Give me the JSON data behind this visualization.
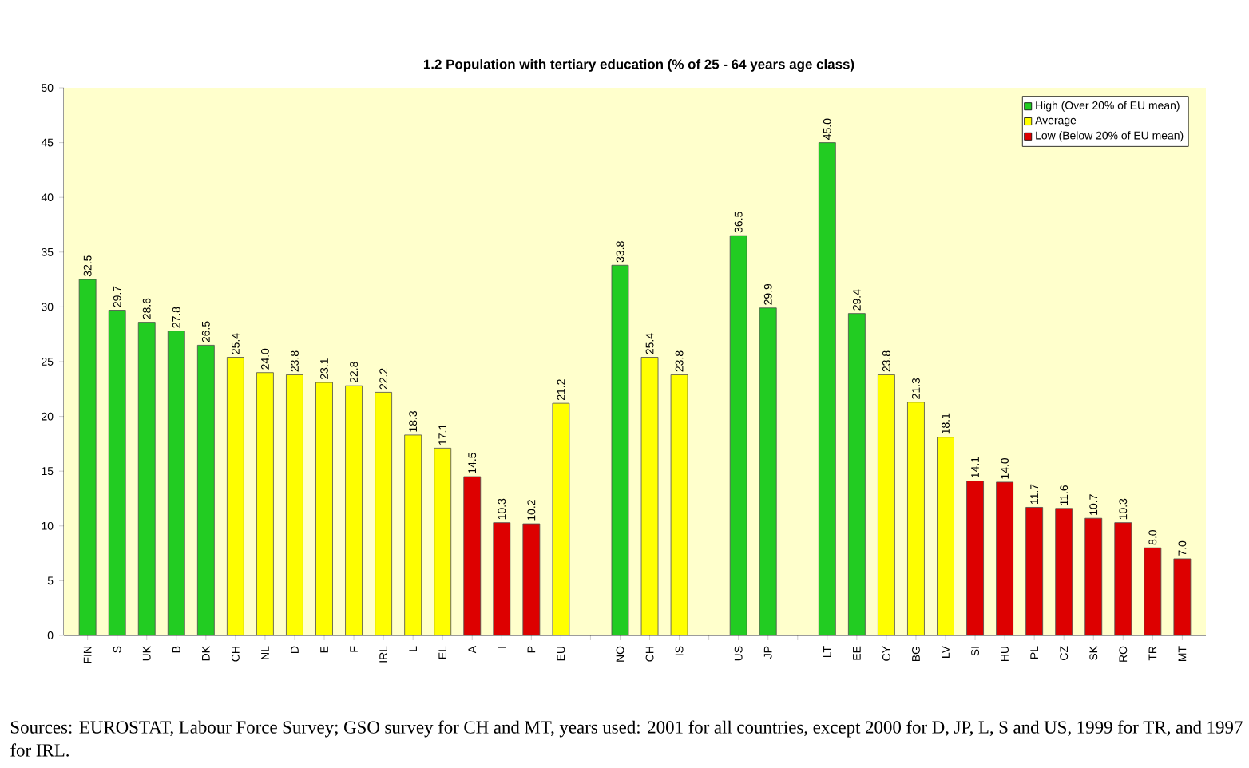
{
  "chart_data": {
    "type": "bar",
    "title": "1.2 Population with tertiary education (% of 25 - 64 years age class)",
    "categories": [
      "FIN",
      "S",
      "UK",
      "B",
      "DK",
      "CH",
      "NL",
      "D",
      "E",
      "F",
      "IRL",
      "L",
      "EL",
      "A",
      "I",
      "P",
      "EU",
      null,
      "NO",
      "CH",
      "IS",
      null,
      "US",
      "JP",
      null,
      "LT",
      "EE",
      "CY",
      "BG",
      "LV",
      "SI",
      "HU",
      "PL",
      "CZ",
      "SK",
      "RO",
      "TR",
      "MT"
    ],
    "series": [
      {
        "name": "High (Over 20% of EU mean)",
        "color": "#22cc22",
        "values": [
          32.5,
          29.7,
          28.6,
          27.8,
          26.5,
          null,
          null,
          null,
          null,
          null,
          null,
          null,
          null,
          null,
          null,
          null,
          null,
          null,
          33.8,
          null,
          null,
          null,
          36.5,
          29.9,
          null,
          45.0,
          29.4,
          null,
          null,
          null,
          null,
          null,
          null,
          null,
          null,
          null,
          null,
          null
        ],
        "value_labels": [
          "32.5",
          "29.7",
          "28.6",
          "27.8",
          "26.5",
          null,
          null,
          null,
          null,
          null,
          null,
          null,
          null,
          null,
          null,
          null,
          null,
          null,
          "33.8",
          null,
          null,
          null,
          "36.5",
          "29.9",
          null,
          "45.0",
          "29.4",
          null,
          null,
          null,
          null,
          null,
          null,
          null,
          null,
          null,
          null,
          null
        ]
      },
      {
        "name": "Average",
        "color": "#ffff00",
        "values": [
          null,
          null,
          null,
          null,
          null,
          25.4,
          24.0,
          23.8,
          23.1,
          22.8,
          22.2,
          18.3,
          17.1,
          null,
          null,
          null,
          21.2,
          null,
          null,
          25.4,
          23.8,
          null,
          null,
          null,
          null,
          null,
          null,
          23.8,
          21.3,
          18.1,
          null,
          null,
          null,
          null,
          null,
          null,
          null,
          null
        ],
        "value_labels": [
          null,
          null,
          null,
          null,
          null,
          "25.4",
          "24.0",
          "23.8",
          "23.1",
          "22.8",
          "22.2",
          "18.3",
          "17.1",
          null,
          null,
          null,
          "21.2",
          null,
          null,
          "25.4",
          "23.8",
          null,
          null,
          null,
          null,
          null,
          null,
          "23.8",
          "21.3",
          "18.1",
          null,
          null,
          null,
          null,
          null,
          null,
          null,
          null
        ]
      },
      {
        "name": "Low (Below 20% of EU mean)",
        "color": "#dd0000",
        "values": [
          null,
          null,
          null,
          null,
          null,
          null,
          null,
          null,
          null,
          null,
          null,
          null,
          null,
          14.5,
          10.3,
          10.2,
          null,
          null,
          null,
          null,
          null,
          null,
          null,
          null,
          null,
          null,
          null,
          null,
          null,
          null,
          14.1,
          14.0,
          11.7,
          11.6,
          10.7,
          10.3,
          8.0,
          7.0
        ],
        "value_labels": [
          null,
          null,
          null,
          null,
          null,
          null,
          null,
          null,
          null,
          null,
          null,
          null,
          null,
          "14.5",
          "10.3",
          "10.2",
          null,
          null,
          null,
          null,
          null,
          null,
          null,
          null,
          null,
          null,
          null,
          null,
          null,
          null,
          "14.1",
          "14.0",
          "11.7",
          "11.6",
          "10.7",
          "10.3",
          "8.0",
          "7.0"
        ]
      }
    ],
    "ylim": [
      0,
      50
    ],
    "yticks": [
      0,
      5,
      10,
      15,
      20,
      25,
      30,
      35,
      40,
      45,
      50
    ],
    "legend": "top right",
    "annotations": [
      "Sources: EUROSTAT, Labour Force Survey; GSO survey for CH and MT, years used: 2001 for all countries, except 2000 for D, JP, L, S and US, 1999 for TR, and 1997 for IRL."
    ]
  }
}
